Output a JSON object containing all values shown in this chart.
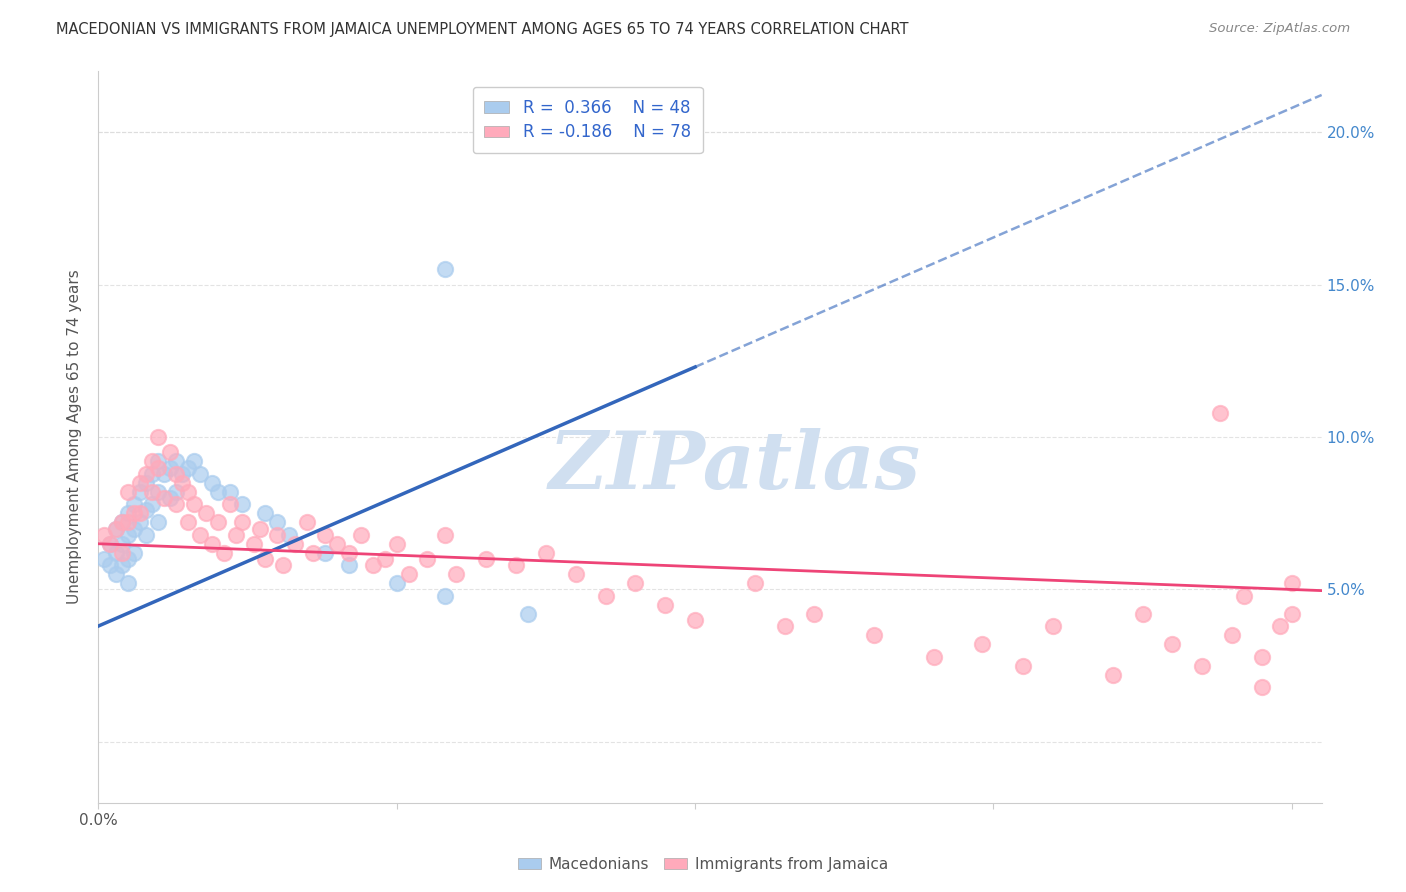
{
  "title": "MACEDONIAN VS IMMIGRANTS FROM JAMAICA UNEMPLOYMENT AMONG AGES 65 TO 74 YEARS CORRELATION CHART",
  "source": "Source: ZipAtlas.com",
  "ylabel": "Unemployment Among Ages 65 to 74 years",
  "xlim": [
    0.0,
    0.205
  ],
  "ylim": [
    -0.02,
    0.22
  ],
  "blue_scatter_color": "#AACCEE",
  "pink_scatter_color": "#FFAABB",
  "trendline_blue_color": "#3366BB",
  "trendline_pink_color": "#EE4477",
  "watermark_color": "#D0DFF0",
  "background_color": "#FFFFFF",
  "grid_color": "#DDDDDD",
  "right_axis_color": "#4488CC",
  "title_color": "#333333",
  "source_color": "#888888",
  "legend_text_color": "#3366CC",
  "legend_value_color": "#3366CC",
  "ylabel_color": "#555555"
}
